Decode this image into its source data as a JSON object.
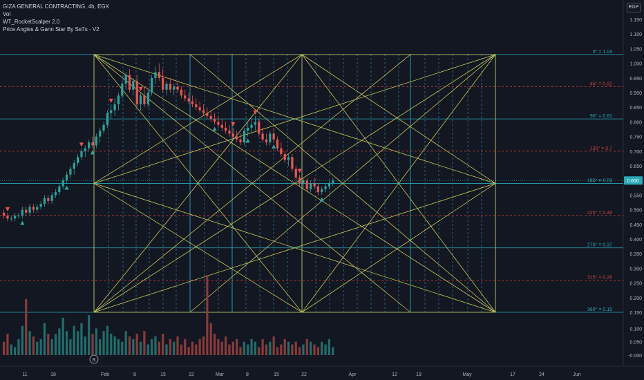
{
  "legend": {
    "symbol_line": "GIZA GENERAL CONTRACTING, 4h, EGX",
    "vol_label": "Vol",
    "indicator_1": "WT_RocketScalper 2.0",
    "indicator_2": "Price Angles & Gann Star By Se7s - V2"
  },
  "currency_badge": "EGP",
  "colors": {
    "background": "#131722",
    "up": "#26a69a",
    "down": "#ef5350",
    "gann": "#c8c75a",
    "level_solid": "#2aa9b8",
    "level_dashed": "#c9423b",
    "time_solid": "#2aa9b8",
    "time_dashed": "#2b7b8c",
    "signal_buy": "#26a69a",
    "signal_sell": "#ef5350",
    "last_price_badge": "#2aa9b8"
  },
  "chart_data": {
    "type": "candlestick",
    "timeframe": "4h",
    "exchange": "EGX",
    "y_ticks": [
      "1.150",
      "1.100",
      "1.050",
      "1.000",
      "0.950",
      "0.900",
      "0.850",
      "0.800",
      "0.750",
      "0.700",
      "0.650",
      "0.600",
      "0.550",
      "0.500",
      "0.450",
      "0.400",
      "0.350",
      "0.300",
      "0.250",
      "0.200",
      "0.150",
      "0.100",
      "0.050",
      "-0.000"
    ],
    "x_ticks": [
      "11",
      "18",
      "Feb",
      "8",
      "15",
      "22",
      "Mar",
      "8",
      "15",
      "22",
      "Apr",
      "12",
      "19",
      "May",
      "17",
      "24",
      "Jun"
    ],
    "last_price": "0.600",
    "gann_levels": [
      {
        "label": "0° = 1.03",
        "price": 1.03,
        "style": "solid"
      },
      {
        "label": "45° = 0.92",
        "price": 0.92,
        "style": "dashed"
      },
      {
        "label": "90° = 0.81",
        "price": 0.81,
        "style": "solid"
      },
      {
        "label": "135° = 0.7",
        "price": 0.7,
        "style": "dashed"
      },
      {
        "label": "180° = 0.59",
        "price": 0.59,
        "style": "solid"
      },
      {
        "label": "225° = 0.48",
        "price": 0.48,
        "style": "dashed"
      },
      {
        "label": "270° = 0.37",
        "price": 0.37,
        "style": "solid"
      },
      {
        "label": "315° = 0.26",
        "price": 0.26,
        "style": "dashed"
      },
      {
        "label": "360° = 0.15",
        "price": 0.15,
        "style": "solid"
      }
    ],
    "gann_box": {
      "start": "Jan 28",
      "mid": "Mar 21",
      "end": "May 5",
      "top": 1.03,
      "bottom": 0.15
    },
    "ohlc": [
      [
        0.49,
        0.5,
        0.47,
        0.48
      ],
      [
        0.48,
        0.49,
        0.46,
        0.47
      ],
      [
        0.47,
        0.48,
        0.46,
        0.47
      ],
      [
        0.47,
        0.49,
        0.46,
        0.48
      ],
      [
        0.48,
        0.49,
        0.47,
        0.48
      ],
      [
        0.48,
        0.51,
        0.47,
        0.5
      ],
      [
        0.5,
        0.51,
        0.48,
        0.49
      ],
      [
        0.49,
        0.52,
        0.48,
        0.51
      ],
      [
        0.51,
        0.52,
        0.49,
        0.5
      ],
      [
        0.5,
        0.52,
        0.49,
        0.51
      ],
      [
        0.51,
        0.53,
        0.5,
        0.52
      ],
      [
        0.52,
        0.55,
        0.51,
        0.54
      ],
      [
        0.54,
        0.55,
        0.52,
        0.53
      ],
      [
        0.53,
        0.56,
        0.52,
        0.55
      ],
      [
        0.55,
        0.57,
        0.54,
        0.56
      ],
      [
        0.56,
        0.59,
        0.55,
        0.58
      ],
      [
        0.58,
        0.61,
        0.57,
        0.6
      ],
      [
        0.6,
        0.63,
        0.59,
        0.62
      ],
      [
        0.62,
        0.65,
        0.61,
        0.64
      ],
      [
        0.64,
        0.67,
        0.62,
        0.66
      ],
      [
        0.66,
        0.69,
        0.65,
        0.68
      ],
      [
        0.68,
        0.71,
        0.67,
        0.7
      ],
      [
        0.7,
        0.72,
        0.68,
        0.71
      ],
      [
        0.71,
        0.74,
        0.7,
        0.73
      ],
      [
        0.73,
        0.75,
        0.71,
        0.72
      ],
      [
        0.72,
        0.76,
        0.71,
        0.75
      ],
      [
        0.75,
        0.78,
        0.73,
        0.77
      ],
      [
        0.77,
        0.8,
        0.76,
        0.79
      ],
      [
        0.79,
        0.84,
        0.78,
        0.83
      ],
      [
        0.83,
        0.86,
        0.81,
        0.84
      ],
      [
        0.84,
        0.88,
        0.82,
        0.86
      ],
      [
        0.86,
        0.9,
        0.84,
        0.89
      ],
      [
        0.89,
        0.94,
        0.88,
        0.93
      ],
      [
        0.93,
        0.97,
        0.91,
        0.96
      ],
      [
        0.96,
        0.98,
        0.9,
        0.91
      ],
      [
        0.91,
        0.95,
        0.89,
        0.94
      ],
      [
        0.94,
        0.96,
        0.85,
        0.86
      ],
      [
        0.86,
        0.9,
        0.84,
        0.89
      ],
      [
        0.89,
        0.92,
        0.85,
        0.86
      ],
      [
        0.86,
        0.91,
        0.85,
        0.9
      ],
      [
        0.9,
        0.96,
        0.89,
        0.95
      ],
      [
        0.95,
        0.99,
        0.93,
        0.97
      ],
      [
        0.97,
        1.0,
        0.94,
        0.95
      ],
      [
        0.95,
        0.98,
        0.9,
        0.91
      ],
      [
        0.91,
        0.94,
        0.89,
        0.93
      ],
      [
        0.93,
        0.95,
        0.9,
        0.91
      ],
      [
        0.91,
        0.93,
        0.89,
        0.92
      ],
      [
        0.92,
        0.94,
        0.9,
        0.91
      ],
      [
        0.91,
        0.92,
        0.88,
        0.89
      ],
      [
        0.89,
        0.91,
        0.87,
        0.88
      ],
      [
        0.88,
        0.9,
        0.86,
        0.87
      ],
      [
        0.87,
        0.89,
        0.85,
        0.86
      ],
      [
        0.86,
        0.88,
        0.84,
        0.85
      ],
      [
        0.85,
        0.87,
        0.83,
        0.84
      ],
      [
        0.84,
        0.86,
        0.82,
        0.83
      ],
      [
        0.83,
        0.85,
        0.81,
        0.82
      ],
      [
        0.82,
        0.84,
        0.8,
        0.81
      ],
      [
        0.81,
        0.83,
        0.79,
        0.8
      ],
      [
        0.8,
        0.82,
        0.78,
        0.79
      ],
      [
        0.79,
        0.81,
        0.77,
        0.78
      ],
      [
        0.78,
        0.8,
        0.76,
        0.77
      ],
      [
        0.77,
        0.79,
        0.75,
        0.76
      ],
      [
        0.76,
        0.78,
        0.74,
        0.75
      ],
      [
        0.75,
        0.77,
        0.73,
        0.74
      ],
      [
        0.74,
        0.76,
        0.72,
        0.73
      ],
      [
        0.73,
        0.78,
        0.72,
        0.77
      ],
      [
        0.77,
        0.8,
        0.75,
        0.78
      ],
      [
        0.78,
        0.81,
        0.76,
        0.79
      ],
      [
        0.79,
        0.82,
        0.77,
        0.8
      ],
      [
        0.8,
        0.81,
        0.75,
        0.76
      ],
      [
        0.76,
        0.78,
        0.73,
        0.74
      ],
      [
        0.74,
        0.76,
        0.72,
        0.73
      ],
      [
        0.73,
        0.77,
        0.72,
        0.76
      ],
      [
        0.76,
        0.78,
        0.73,
        0.74
      ],
      [
        0.74,
        0.75,
        0.7,
        0.71
      ],
      [
        0.71,
        0.73,
        0.68,
        0.69
      ],
      [
        0.69,
        0.7,
        0.66,
        0.67
      ],
      [
        0.67,
        0.69,
        0.65,
        0.68
      ],
      [
        0.68,
        0.69,
        0.63,
        0.64
      ],
      [
        0.64,
        0.65,
        0.6,
        0.61
      ],
      [
        0.61,
        0.62,
        0.58,
        0.59
      ],
      [
        0.59,
        0.61,
        0.57,
        0.6
      ],
      [
        0.6,
        0.61,
        0.56,
        0.57
      ],
      [
        0.57,
        0.6,
        0.56,
        0.59
      ],
      [
        0.59,
        0.61,
        0.57,
        0.58
      ],
      [
        0.58,
        0.59,
        0.55,
        0.56
      ],
      [
        0.56,
        0.58,
        0.55,
        0.57
      ],
      [
        0.57,
        0.59,
        0.56,
        0.58
      ],
      [
        0.58,
        0.6,
        0.57,
        0.59
      ],
      [
        0.59,
        0.61,
        0.58,
        0.6
      ]
    ],
    "volume": [
      0.05,
      0.08,
      0.04,
      0.03,
      0.06,
      0.11,
      0.21,
      0.09,
      0.07,
      0.05,
      0.06,
      0.12,
      0.08,
      0.06,
      0.08,
      0.1,
      0.14,
      0.09,
      0.06,
      0.11,
      0.09,
      0.12,
      0.07,
      0.15,
      0.08,
      0.1,
      0.06,
      0.09,
      0.11,
      0.08,
      0.07,
      0.06,
      0.05,
      0.09,
      0.07,
      0.06,
      0.08,
      0.05,
      0.09,
      0.04,
      0.06,
      0.07,
      0.05,
      0.08,
      0.04,
      0.06,
      0.05,
      0.07,
      0.04,
      0.06,
      0.03,
      0.05,
      0.04,
      0.06,
      0.07,
      0.3,
      0.12,
      0.08,
      0.06,
      0.05,
      0.07,
      0.04,
      0.05,
      0.06,
      0.03,
      0.05,
      0.04,
      0.06,
      0.05,
      0.03,
      0.06,
      0.04,
      0.05,
      0.07,
      0.03,
      0.04,
      0.06,
      0.05,
      0.04,
      0.05,
      0.03,
      0.04,
      0.06,
      0.05,
      0.04,
      0.03,
      0.05,
      0.04,
      0.06,
      0.03
    ],
    "buy_signals": [
      5,
      17,
      24,
      57,
      66,
      73,
      86
    ],
    "sell_signals": [
      1,
      21,
      29,
      37,
      62,
      68,
      80
    ]
  }
}
